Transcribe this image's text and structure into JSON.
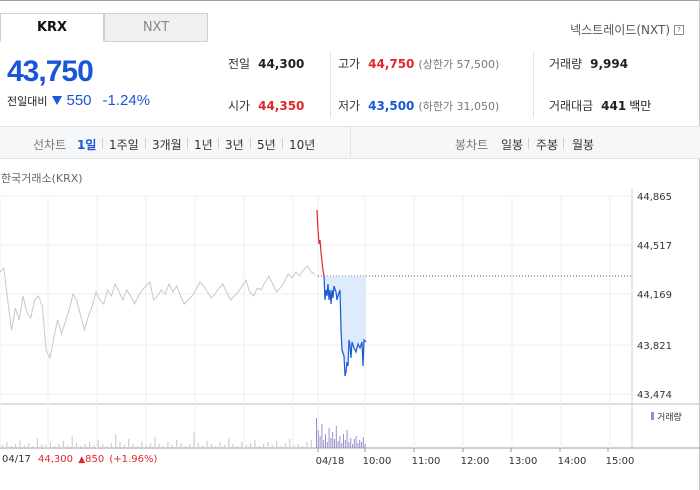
{
  "tabs": [
    {
      "label": "KRX",
      "active": true
    },
    {
      "label": "NXT",
      "active": false
    }
  ],
  "nxt_link": {
    "label": "넥스트레이드(NXT)",
    "icon": "help-icon",
    "icon_glyph": "?"
  },
  "quote": {
    "price": "43,750",
    "change_label": "전일대비",
    "change": "550",
    "change_pct": "-1.24%",
    "direction_icon": "down-triangle-icon",
    "color": "#1a56d6"
  },
  "stats": {
    "prev_close": {
      "label": "전일",
      "value": "44,300"
    },
    "open": {
      "label": "시가",
      "value": "44,350"
    },
    "high": {
      "label": "고가",
      "value": "44,750",
      "sub": "(상한가 57,500)"
    },
    "low": {
      "label": "저가",
      "value": "43,500",
      "sub": "(하한가 31,050)"
    },
    "volume": {
      "label": "거래량",
      "value": "9,994"
    },
    "amount": {
      "label": "거래대금",
      "value": "441",
      "unit": "백만"
    }
  },
  "period_bar": {
    "line_chart_label": "선차트",
    "line_periods": [
      "1일",
      "1주일",
      "3개월",
      "1년",
      "3년",
      "5년",
      "10년"
    ],
    "active_period": "1일",
    "candle_label": "봉차트",
    "candle_periods": [
      "일봉",
      "주봉",
      "월봉"
    ]
  },
  "chart_source": "한국거래소(KRX)",
  "chart_data": {
    "type": "line",
    "y_ticks": [
      "44,865",
      "44,517",
      "44,169",
      "43,821",
      "43,474"
    ],
    "ylim": [
      43474,
      44865
    ],
    "x_ticks": [
      "04/18",
      "10:00",
      "11:00",
      "12:00",
      "13:00",
      "14:00",
      "15:00"
    ],
    "prev_close": 44300,
    "series": [
      {
        "x": [
          0,
          1,
          2,
          3,
          4,
          5,
          6,
          7,
          8,
          9,
          10
        ],
        "values": [
          44820,
          44560,
          44450,
          44300,
          44230,
          44150,
          44000,
          44050,
          43950,
          44000,
          44200
        ]
      },
      {
        "x": [
          10,
          11,
          12,
          13,
          14,
          15,
          16,
          17,
          18,
          19,
          20,
          21
        ],
        "values": [
          44200,
          44150,
          44100,
          44050,
          43900,
          43780,
          43650,
          43680,
          43800,
          43750,
          43800,
          43750
        ]
      }
    ],
    "volume_label": "거래량",
    "colors": {
      "up": "#e0262c",
      "down": "#1a56d6",
      "history": "#c8c8c8",
      "volume": "#9b8fc9"
    }
  },
  "footer": {
    "date": "04/17",
    "close": "44,300",
    "change": "850",
    "change_pct": "(+1.96%)",
    "up_icon": "up-triangle-icon"
  }
}
